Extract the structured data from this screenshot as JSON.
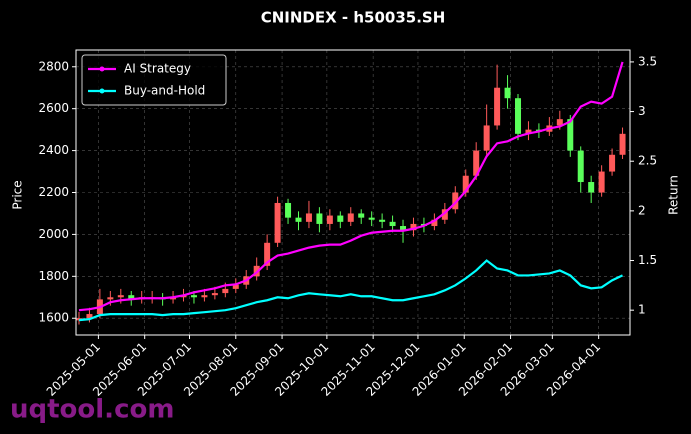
{
  "chart_data": {
    "type": "candlestick",
    "title": "CNINDEX - h50035.SH",
    "y_label": "Price",
    "y2_label": "Return",
    "watermark": "uqtool.com",
    "x": [
      "2025-04-18",
      "2025-04-25",
      "2025-05-02",
      "2025-05-09",
      "2025-05-16",
      "2025-05-23",
      "2025-05-30",
      "2025-06-06",
      "2025-06-13",
      "2025-06-20",
      "2025-06-27",
      "2025-07-04",
      "2025-07-11",
      "2025-07-18",
      "2025-07-25",
      "2025-08-01",
      "2025-08-08",
      "2025-08-15",
      "2025-08-22",
      "2025-08-29",
      "2025-09-05",
      "2025-09-12",
      "2025-09-19",
      "2025-09-26",
      "2025-10-03",
      "2025-10-10",
      "2025-10-17",
      "2025-10-24",
      "2025-10-31",
      "2025-11-07",
      "2025-11-14",
      "2025-11-21",
      "2025-11-28",
      "2025-12-05",
      "2025-12-12",
      "2025-12-19",
      "2025-12-26",
      "2026-01-02",
      "2026-01-09",
      "2026-01-16",
      "2026-01-23",
      "2026-01-30",
      "2026-02-06",
      "2026-02-13",
      "2026-02-20",
      "2026-02-27",
      "2026-03-06",
      "2026-03-13",
      "2026-03-20",
      "2026-03-27",
      "2026-04-03",
      "2026-04-10",
      "2026-04-17"
    ],
    "open": [
      1590,
      1600,
      1620,
      1690,
      1700,
      1710,
      1690,
      1700,
      1700,
      1690,
      1700,
      1710,
      1700,
      1710,
      1720,
      1740,
      1760,
      1800,
      1850,
      1960,
      2150,
      2080,
      2060,
      2100,
      2050,
      2090,
      2060,
      2100,
      2080,
      2070,
      2060,
      2040,
      2020,
      2050,
      2040,
      2070,
      2120,
      2200,
      2280,
      2400,
      2520,
      2700,
      2650,
      2480,
      2500,
      2490,
      2520,
      2550,
      2400,
      2250,
      2200,
      2300,
      2380
    ],
    "high": [
      1630,
      1650,
      1740,
      1730,
      1740,
      1730,
      1730,
      1730,
      1720,
      1730,
      1740,
      1730,
      1740,
      1750,
      1770,
      1790,
      1830,
      1890,
      2000,
      2180,
      2170,
      2110,
      2160,
      2130,
      2120,
      2110,
      2130,
      2120,
      2110,
      2100,
      2090,
      2070,
      2080,
      2080,
      2100,
      2150,
      2230,
      2310,
      2440,
      2620,
      2810,
      2760,
      2670,
      2540,
      2530,
      2560,
      2590,
      2570,
      2420,
      2280,
      2330,
      2410,
      2510
    ],
    "low": [
      1570,
      1580,
      1600,
      1660,
      1670,
      1660,
      1670,
      1670,
      1660,
      1670,
      1680,
      1670,
      1680,
      1690,
      1700,
      1720,
      1740,
      1780,
      1830,
      1940,
      2050,
      2020,
      2030,
      2010,
      2020,
      2030,
      2040,
      2050,
      2040,
      2030,
      2010,
      1960,
      1990,
      2010,
      2020,
      2050,
      2100,
      2180,
      2260,
      2380,
      2500,
      2600,
      2450,
      2450,
      2460,
      2470,
      2500,
      2370,
      2200,
      2150,
      2180,
      2280,
      2360
    ],
    "close": [
      1600,
      1620,
      1690,
      1700,
      1710,
      1690,
      1700,
      1700,
      1690,
      1700,
      1710,
      1700,
      1710,
      1720,
      1740,
      1760,
      1800,
      1850,
      1960,
      2150,
      2080,
      2060,
      2100,
      2050,
      2090,
      2060,
      2100,
      2080,
      2070,
      2060,
      2040,
      2020,
      2050,
      2040,
      2070,
      2120,
      2200,
      2280,
      2400,
      2520,
      2700,
      2650,
      2480,
      2500,
      2490,
      2520,
      2550,
      2400,
      2250,
      2200,
      2300,
      2380,
      2480
    ],
    "up_color": "#ff5a5a",
    "down_color": "#5aff5a",
    "series": [
      {
        "name": "AI Strategy",
        "color": "#ff00ff",
        "axis": "y2",
        "values": [
          1.0,
          1.01,
          1.03,
          1.08,
          1.1,
          1.11,
          1.12,
          1.12,
          1.12,
          1.13,
          1.15,
          1.18,
          1.2,
          1.22,
          1.25,
          1.26,
          1.3,
          1.38,
          1.48,
          1.55,
          1.57,
          1.6,
          1.63,
          1.65,
          1.66,
          1.66,
          1.7,
          1.75,
          1.78,
          1.79,
          1.8,
          1.8,
          1.82,
          1.85,
          1.9,
          1.98,
          2.08,
          2.2,
          2.35,
          2.55,
          2.68,
          2.7,
          2.75,
          2.78,
          2.8,
          2.83,
          2.85,
          2.9,
          3.05,
          3.1,
          3.08,
          3.15,
          3.5
        ]
      },
      {
        "name": "Buy-and-Hold",
        "color": "#00ffff",
        "axis": "y2",
        "values": [
          0.9,
          0.91,
          0.95,
          0.96,
          0.96,
          0.96,
          0.96,
          0.96,
          0.95,
          0.96,
          0.96,
          0.97,
          0.98,
          0.99,
          1.0,
          1.02,
          1.05,
          1.08,
          1.1,
          1.13,
          1.12,
          1.15,
          1.17,
          1.16,
          1.15,
          1.14,
          1.16,
          1.14,
          1.14,
          1.12,
          1.1,
          1.1,
          1.12,
          1.14,
          1.16,
          1.2,
          1.25,
          1.32,
          1.4,
          1.5,
          1.42,
          1.4,
          1.35,
          1.35,
          1.36,
          1.37,
          1.4,
          1.35,
          1.25,
          1.22,
          1.23,
          1.3,
          1.35
        ]
      }
    ],
    "xlim": [
      "2025-04-16",
      "2026-04-22"
    ],
    "xticks": [
      "2025-05-01",
      "2025-06-01",
      "2025-07-01",
      "2025-08-01",
      "2025-09-01",
      "2025-10-01",
      "2025-11-01",
      "2025-12-01",
      "2026-01-01",
      "2026-02-01",
      "2026-03-01",
      "2026-04-01"
    ],
    "ylim": [
      1520,
      2880
    ],
    "yticks": [
      1600,
      1800,
      2000,
      2200,
      2400,
      2600,
      2800
    ],
    "y2lim": [
      0.75,
      3.62
    ],
    "y2ticks": [
      1.0,
      1.5,
      2.0,
      2.5,
      3.0,
      3.5
    ],
    "grid": true,
    "legend": "upper left"
  }
}
